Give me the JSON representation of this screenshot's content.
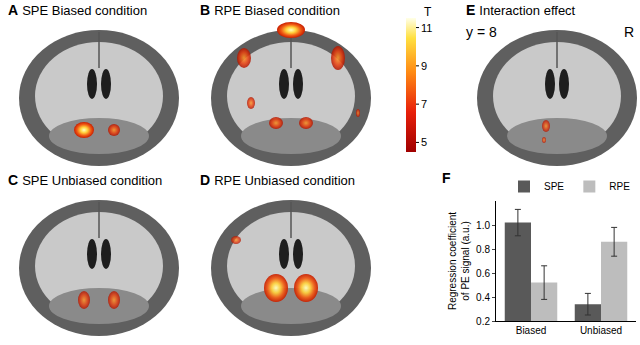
{
  "panels": [
    {
      "letter": "A",
      "title": "SPE Biased condition"
    },
    {
      "letter": "B",
      "title": "RPE Biased condition"
    },
    {
      "letter": "C",
      "title": "SPE Unbiased condition"
    },
    {
      "letter": "D",
      "title": "RPE Unbiased condition"
    },
    {
      "letter": "E",
      "title": "Interaction effect",
      "annotations": [
        "y = 8",
        "R"
      ]
    }
  ],
  "colorbar": {
    "title": "T",
    "range": [
      4.5,
      11.5
    ],
    "ticks": [
      5,
      7,
      9,
      11
    ]
  },
  "chart_data": {
    "type": "bar",
    "title": "F",
    "categories": [
      "Biased",
      "Unbiased"
    ],
    "series": [
      {
        "name": "SPE",
        "color": "#595959",
        "values": [
          1.02,
          0.34
        ],
        "errors": [
          0.11,
          0.09
        ]
      },
      {
        "name": "RPE",
        "color": "#bdbdbd",
        "values": [
          0.52,
          0.86
        ],
        "errors": [
          0.14,
          0.12
        ]
      }
    ],
    "y_label": "Regression coefficient of PE signal (a.u.)",
    "ylim": [
      0.2,
      1.2
    ],
    "yticks": [
      0.2,
      0.4,
      0.6,
      0.8,
      {
        "value": 1,
        "label": "1.0"
      }
    ],
    "grid": false,
    "legend": "top right"
  }
}
